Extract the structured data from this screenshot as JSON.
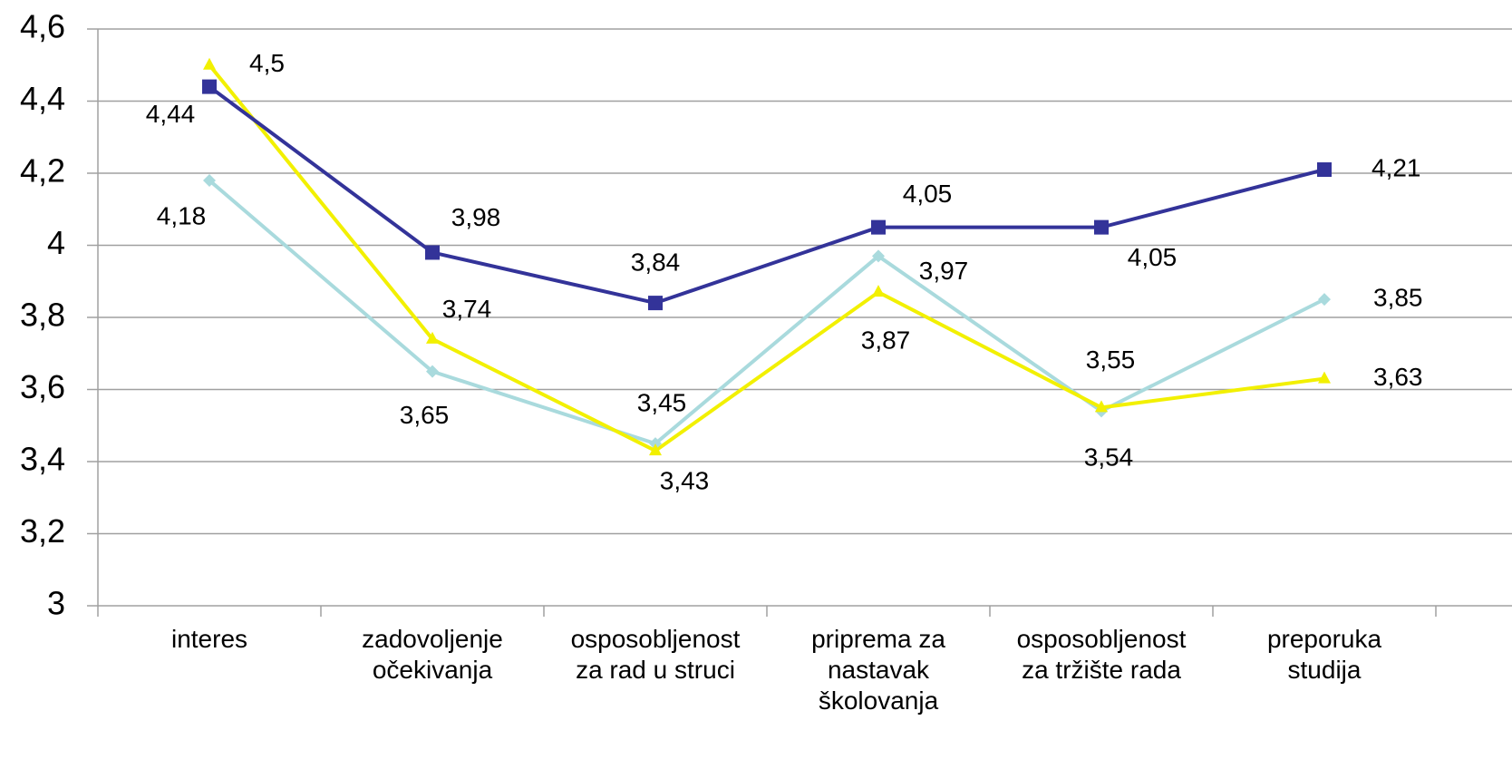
{
  "chart_data": {
    "type": "line",
    "categories": [
      "interes",
      "zadovoljenje\nočekivanja",
      "osposobljenost\nza rad u struci",
      "priprema za\nnastavak\nškolovanja",
      "osposobljenost\nza tržište rada",
      "preporuka\nstudija"
    ],
    "series": [
      {
        "color": "#333399",
        "marker": "square",
        "values": [
          4.44,
          3.98,
          3.84,
          4.05,
          4.05,
          4.21
        ],
        "value_labels": [
          "4,44",
          "3,98",
          "3,84",
          "4,05",
          "4,05",
          "4,21"
        ]
      },
      {
        "color": "#a9dadd",
        "marker": "diamond",
        "values": [
          4.18,
          3.65,
          3.45,
          3.97,
          3.54,
          3.85
        ],
        "value_labels": [
          "4,18",
          "3,65",
          "3,45",
          "3,97",
          "3,54",
          "3,85"
        ]
      },
      {
        "color": "#f2f000",
        "marker": "triangle",
        "values": [
          4.5,
          3.74,
          3.43,
          3.87,
          3.55,
          3.63
        ],
        "value_labels": [
          "4,5",
          "3,74",
          "3,43",
          "3,87",
          "3,55",
          "3,63"
        ]
      }
    ],
    "ylim": [
      3,
      4.6
    ],
    "yticks": [
      3,
      {
        "value": 3.2,
        "label": "3,2"
      },
      {
        "value": 3.4,
        "label": "3,4"
      },
      {
        "value": 3.6,
        "label": "3,6"
      },
      {
        "value": 3.8,
        "label": "3,8"
      },
      4,
      {
        "value": 4.2,
        "label": "4,2"
      },
      {
        "value": 4.4,
        "label": "4,4"
      },
      {
        "value": 4.6,
        "label": "4,6"
      }
    ],
    "grid": true
  }
}
